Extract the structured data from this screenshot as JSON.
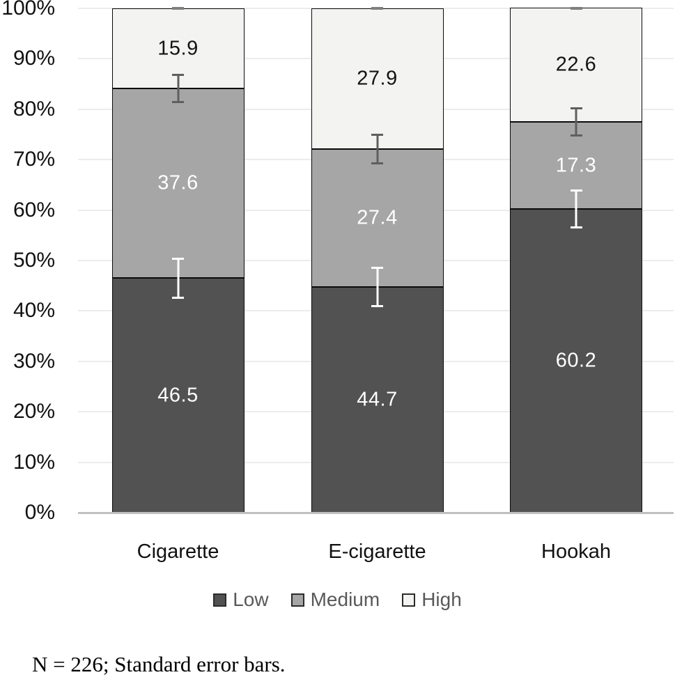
{
  "chart_data": {
    "type": "bar",
    "subtype": "stacked-percentage-bar",
    "categories": [
      "Cigarette",
      "E-cigarette",
      "Hookah"
    ],
    "series": [
      {
        "name": "Low",
        "values": [
          46.5,
          44.7,
          60.2
        ],
        "color": "#525252",
        "label_color": "#ffffff"
      },
      {
        "name": "Medium",
        "values": [
          37.6,
          27.4,
          17.3
        ],
        "color": "#a6a6a6",
        "label_color": "#ffffff"
      },
      {
        "name": "High",
        "values": [
          15.9,
          27.9,
          22.6
        ],
        "color": "#f3f3f2",
        "label_color": "#141414"
      }
    ],
    "error_bars": {
      "low_boundary": {
        "centers": [
          46.5,
          44.7,
          60.2
        ],
        "se": [
          4.1,
          4.0,
          3.9
        ],
        "color": "#ffffff"
      },
      "medium_boundary": {
        "centers": [
          84.1,
          72.1,
          77.5
        ],
        "se": [
          2.9,
          3.0,
          2.9
        ],
        "color": "#5f5f5f"
      },
      "top_cap": {
        "at": 100,
        "color": "#7f7f7f"
      }
    },
    "y_axis": {
      "tick_labels": [
        "100%",
        "90%",
        "80%",
        "70%",
        "60%",
        "50%",
        "40%",
        "30%",
        "20%",
        "10%",
        "0%"
      ],
      "min": 0,
      "max": 100,
      "grid": true
    },
    "legend": {
      "position": "bottom",
      "entries": [
        "Low",
        "Medium",
        "High"
      ]
    },
    "title": "",
    "xlabel": "",
    "ylabel": "",
    "note": "N = 226; Standard error bars."
  },
  "colors": {
    "background": "#ffffff",
    "gridline": "#ececec",
    "axis_line": "#c0c0c0",
    "bar_border": "#0a0a0a",
    "axis_text": "#111111",
    "legend_text": "#595959"
  }
}
